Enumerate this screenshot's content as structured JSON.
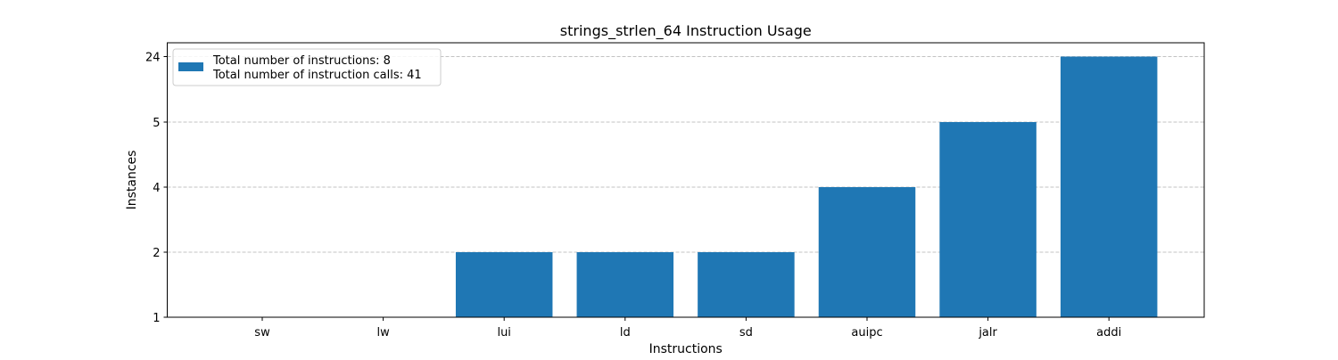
{
  "chart_data": {
    "type": "bar",
    "title": "strings_strlen_64 Instruction Usage",
    "xlabel": "Instructions",
    "ylabel": "Instances",
    "categories": [
      "sw",
      "lw",
      "lui",
      "ld",
      "sd",
      "auipc",
      "jalr",
      "addi"
    ],
    "values": [
      1,
      1,
      2,
      2,
      2,
      4,
      5,
      24
    ],
    "y_ticks": [
      1,
      2,
      4,
      5,
      24
    ],
    "y_axis_scale": "categorical-ranked (ticks equally spaced)",
    "ylim": [
      1,
      24
    ],
    "grid": "y-dashed",
    "legend": {
      "placement": "top-left",
      "lines": [
        "Total number of instructions: 8",
        "Total number of instruction calls: 41"
      ]
    },
    "colors": {
      "bar": "#1f77b4",
      "grid": "#b0b0b0",
      "axis": "#000000"
    }
  }
}
